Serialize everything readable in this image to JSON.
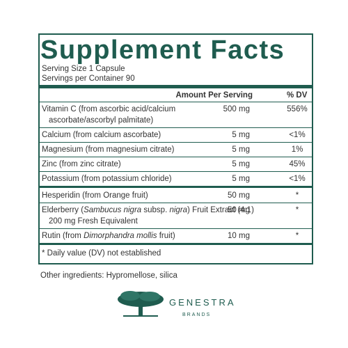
{
  "header": {
    "title": "Supplement Facts",
    "serving_size": "Serving Size 1 Capsule",
    "servings_per_container": "Servings per Container 90"
  },
  "table": {
    "columns": [
      "Amount Per Serving",
      "% DV"
    ],
    "groups": [
      {
        "rows": [
          {
            "name": [
              [
                {
                  "text": "Vitamin C (from ascorbic acid/calcium"
                }
              ],
              [
                {
                  "text": "ascorbate/ascorbyl palmitate)"
                }
              ]
            ],
            "amount": "500 mg",
            "dv": "556%"
          },
          {
            "name": [
              [
                {
                  "text": "Calcium (from calcium ascorbate)"
                }
              ]
            ],
            "amount": "5 mg",
            "dv": "<1%"
          },
          {
            "name": [
              [
                {
                  "text": "Magnesium (from magnesium citrate)"
                }
              ]
            ],
            "amount": "5 mg",
            "dv": "1%"
          },
          {
            "name": [
              [
                {
                  "text": "Zinc (from zinc citrate)"
                }
              ]
            ],
            "amount": "5 mg",
            "dv": "45%"
          },
          {
            "name": [
              [
                {
                  "text": "Potassium (from potassium chloride)"
                }
              ]
            ],
            "amount": "5 mg",
            "dv": "<1%"
          }
        ]
      },
      {
        "rows": [
          {
            "name": [
              [
                {
                  "text": "Hesperidin (from Orange fruit)"
                }
              ]
            ],
            "amount": "50 mg",
            "dv": "*"
          },
          {
            "name": [
              [
                {
                  "text": "Elderberry ("
                },
                {
                  "text": "Sambucus nigra",
                  "italic": true
                },
                {
                  "text": " subsp. "
                },
                {
                  "text": "nigra",
                  "italic": true
                },
                {
                  "text": ") Fruit Extract (4:1)"
                }
              ],
              [
                {
                  "text": "200 mg Fresh Equivalent"
                }
              ]
            ],
            "amount": "50 mg",
            "dv": "*"
          },
          {
            "name": [
              [
                {
                  "text": "Rutin (from "
                },
                {
                  "text": "Dimorphandra mollis",
                  "italic": true
                },
                {
                  "text": " fruit)"
                }
              ]
            ],
            "amount": "10 mg",
            "dv": "*"
          }
        ]
      }
    ],
    "footnote": "* Daily value (DV) not established"
  },
  "other_ingredients": "Other ingredients: Hypromellose, silica",
  "logo": {
    "name": "GENESTRA",
    "sub": "BRANDS"
  }
}
